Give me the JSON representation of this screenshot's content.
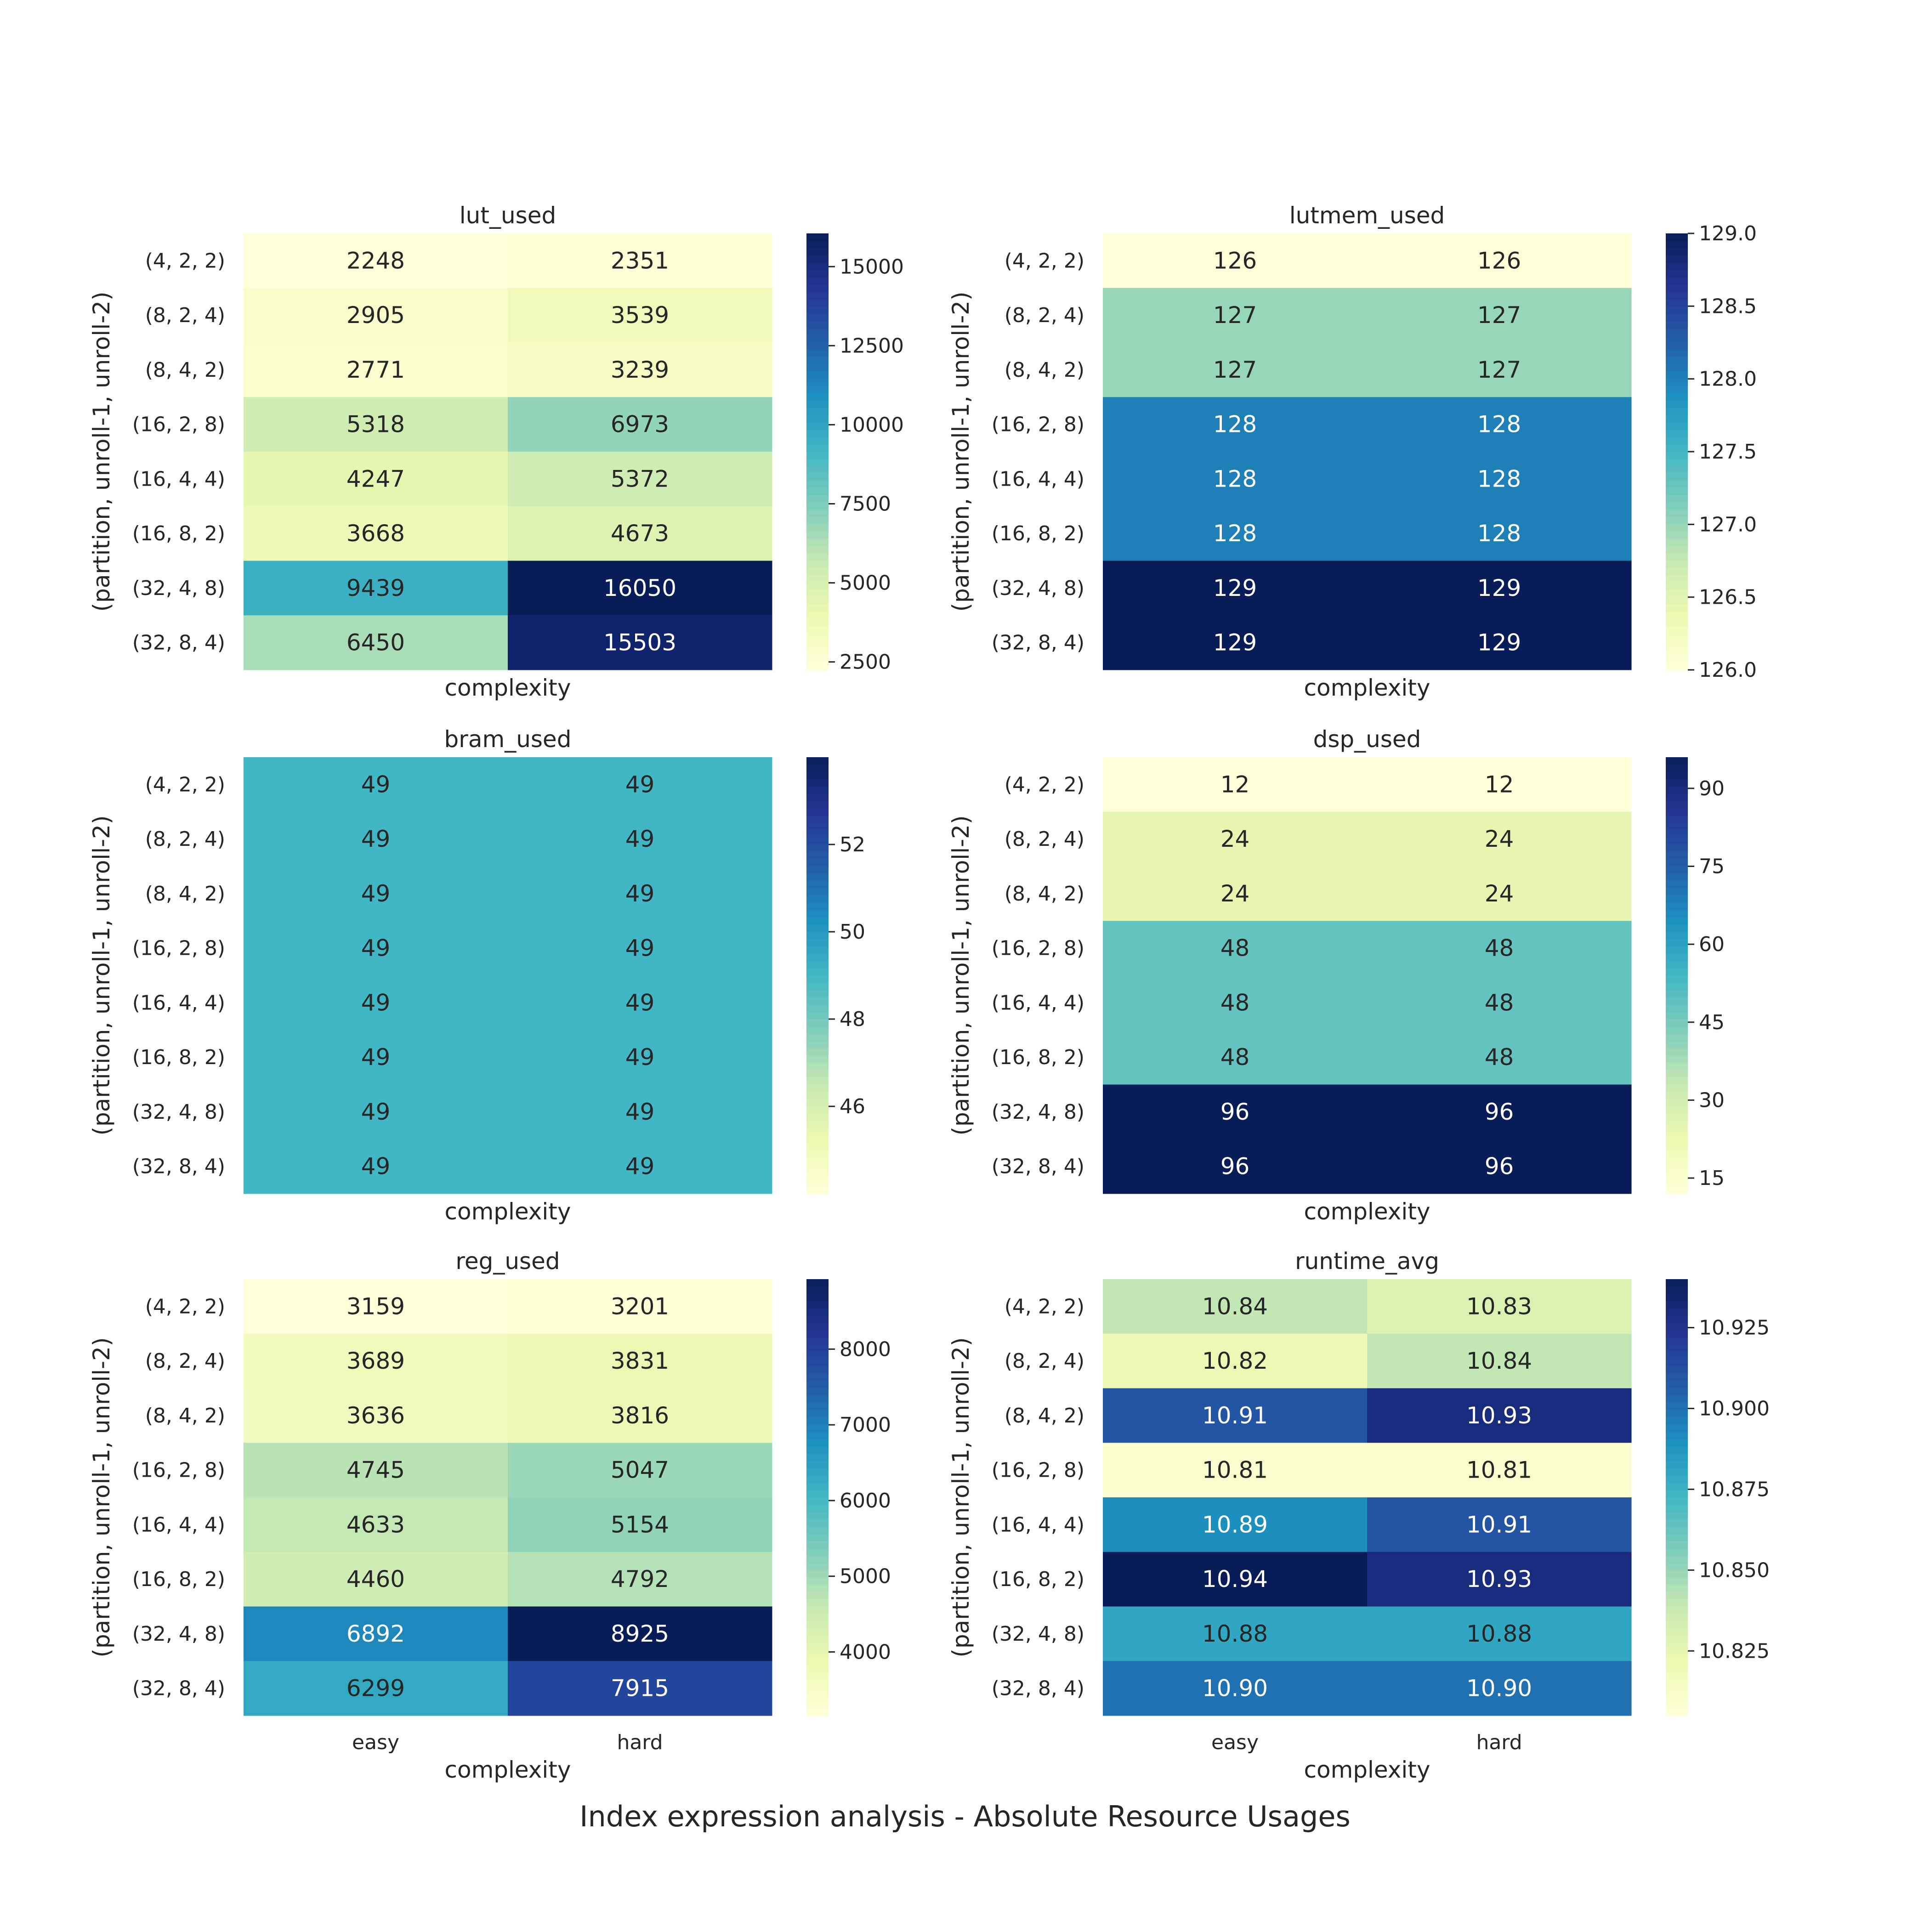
{
  "figure": {
    "suptitle": "Index expression analysis - Absolute Resource Usages"
  },
  "colormap": {
    "name": "YlGnBu",
    "stops": [
      "#ffffd9",
      "#edf8b1",
      "#c7e9b4",
      "#7fcdbb",
      "#41b6c4",
      "#1d91c0",
      "#225ea8",
      "#253494",
      "#081d58"
    ]
  },
  "chart_data": [
    {
      "type": "heatmap",
      "title": "lut_used",
      "xlabel": "complexity",
      "ylabel": "(partition, unroll-1, unroll-2)",
      "columns": [
        "easy",
        "hard"
      ],
      "rows": [
        "(4, 2, 2)",
        "(8, 2, 4)",
        "(8, 4, 2)",
        "(16, 2, 8)",
        "(16, 4, 4)",
        "(16, 8, 2)",
        "(32, 4, 8)",
        "(32, 8, 4)"
      ],
      "values": [
        [
          2248,
          2351
        ],
        [
          2905,
          3539
        ],
        [
          2771,
          3239
        ],
        [
          5318,
          6973
        ],
        [
          4247,
          5372
        ],
        [
          3668,
          4673
        ],
        [
          9439,
          16050
        ],
        [
          6450,
          15503
        ]
      ],
      "labels": [
        [
          "2248",
          "2351"
        ],
        [
          "2905",
          "3539"
        ],
        [
          "2771",
          "3239"
        ],
        [
          "5318",
          "6973"
        ],
        [
          "4247",
          "5372"
        ],
        [
          "3668",
          "4673"
        ],
        [
          "9439",
          "16050"
        ],
        [
          "6450",
          "15503"
        ]
      ],
      "vmin": 2248,
      "vmax": 16050,
      "colorbar_ticks": [
        2500,
        5000,
        7500,
        10000,
        12500,
        15000
      ],
      "colorbar_tick_labels": [
        "2500",
        "5000",
        "7500",
        "10000",
        "12500",
        "15000"
      ],
      "show_xticklabels": false
    },
    {
      "type": "heatmap",
      "title": "lutmem_used",
      "xlabel": "complexity",
      "ylabel": "(partition, unroll-1, unroll-2)",
      "columns": [
        "easy",
        "hard"
      ],
      "rows": [
        "(4, 2, 2)",
        "(8, 2, 4)",
        "(8, 4, 2)",
        "(16, 2, 8)",
        "(16, 4, 4)",
        "(16, 8, 2)",
        "(32, 4, 8)",
        "(32, 8, 4)"
      ],
      "values": [
        [
          126,
          126
        ],
        [
          127,
          127
        ],
        [
          127,
          127
        ],
        [
          128,
          128
        ],
        [
          128,
          128
        ],
        [
          128,
          128
        ],
        [
          129,
          129
        ],
        [
          129,
          129
        ]
      ],
      "labels": [
        [
          "126",
          "126"
        ],
        [
          "127",
          "127"
        ],
        [
          "127",
          "127"
        ],
        [
          "128",
          "128"
        ],
        [
          "128",
          "128"
        ],
        [
          "128",
          "128"
        ],
        [
          "129",
          "129"
        ],
        [
          "129",
          "129"
        ]
      ],
      "vmin": 126,
      "vmax": 129,
      "colorbar_ticks": [
        126.0,
        126.5,
        127.0,
        127.5,
        128.0,
        128.5,
        129.0
      ],
      "colorbar_tick_labels": [
        "126.0",
        "126.5",
        "127.0",
        "127.5",
        "128.0",
        "128.5",
        "129.0"
      ],
      "show_xticklabels": false
    },
    {
      "type": "heatmap",
      "title": "bram_used",
      "xlabel": "complexity",
      "ylabel": "(partition, unroll-1, unroll-2)",
      "columns": [
        "easy",
        "hard"
      ],
      "rows": [
        "(4, 2, 2)",
        "(8, 2, 4)",
        "(8, 4, 2)",
        "(16, 2, 8)",
        "(16, 4, 4)",
        "(16, 8, 2)",
        "(32, 4, 8)",
        "(32, 8, 4)"
      ],
      "values": [
        [
          49,
          49
        ],
        [
          49,
          49
        ],
        [
          49,
          49
        ],
        [
          49,
          49
        ],
        [
          49,
          49
        ],
        [
          49,
          49
        ],
        [
          49,
          49
        ],
        [
          49,
          49
        ]
      ],
      "labels": [
        [
          "49",
          "49"
        ],
        [
          "49",
          "49"
        ],
        [
          "49",
          "49"
        ],
        [
          "49",
          "49"
        ],
        [
          "49",
          "49"
        ],
        [
          "49",
          "49"
        ],
        [
          "49",
          "49"
        ],
        [
          "49",
          "49"
        ]
      ],
      "vmin": 44,
      "vmax": 54,
      "colorbar_ticks": [
        46,
        48,
        50,
        52
      ],
      "colorbar_tick_labels": [
        "46",
        "48",
        "50",
        "52"
      ],
      "show_xticklabels": false
    },
    {
      "type": "heatmap",
      "title": "dsp_used",
      "xlabel": "complexity",
      "ylabel": "(partition, unroll-1, unroll-2)",
      "columns": [
        "easy",
        "hard"
      ],
      "rows": [
        "(4, 2, 2)",
        "(8, 2, 4)",
        "(8, 4, 2)",
        "(16, 2, 8)",
        "(16, 4, 4)",
        "(16, 8, 2)",
        "(32, 4, 8)",
        "(32, 8, 4)"
      ],
      "values": [
        [
          12,
          12
        ],
        [
          24,
          24
        ],
        [
          24,
          24
        ],
        [
          48,
          48
        ],
        [
          48,
          48
        ],
        [
          48,
          48
        ],
        [
          96,
          96
        ],
        [
          96,
          96
        ]
      ],
      "labels": [
        [
          "12",
          "12"
        ],
        [
          "24",
          "24"
        ],
        [
          "24",
          "24"
        ],
        [
          "48",
          "48"
        ],
        [
          "48",
          "48"
        ],
        [
          "48",
          "48"
        ],
        [
          "96",
          "96"
        ],
        [
          "96",
          "96"
        ]
      ],
      "vmin": 12,
      "vmax": 96,
      "colorbar_ticks": [
        15,
        30,
        45,
        60,
        75,
        90
      ],
      "colorbar_tick_labels": [
        "15",
        "30",
        "45",
        "60",
        "75",
        "90"
      ],
      "show_xticklabels": false
    },
    {
      "type": "heatmap",
      "title": "reg_used",
      "xlabel": "complexity",
      "ylabel": "(partition, unroll-1, unroll-2)",
      "columns": [
        "easy",
        "hard"
      ],
      "rows": [
        "(4, 2, 2)",
        "(8, 2, 4)",
        "(8, 4, 2)",
        "(16, 2, 8)",
        "(16, 4, 4)",
        "(16, 8, 2)",
        "(32, 4, 8)",
        "(32, 8, 4)"
      ],
      "values": [
        [
          3159,
          3201
        ],
        [
          3689,
          3831
        ],
        [
          3636,
          3816
        ],
        [
          4745,
          5047
        ],
        [
          4633,
          5154
        ],
        [
          4460,
          4792
        ],
        [
          6892,
          8925
        ],
        [
          6299,
          7915
        ]
      ],
      "labels": [
        [
          "3159",
          "3201"
        ],
        [
          "3689",
          "3831"
        ],
        [
          "3636",
          "3816"
        ],
        [
          "4745",
          "5047"
        ],
        [
          "4633",
          "5154"
        ],
        [
          "4460",
          "4792"
        ],
        [
          "6892",
          "8925"
        ],
        [
          "6299",
          "7915"
        ]
      ],
      "vmin": 3159,
      "vmax": 8925,
      "colorbar_ticks": [
        4000,
        5000,
        6000,
        7000,
        8000
      ],
      "colorbar_tick_labels": [
        "4000",
        "5000",
        "6000",
        "7000",
        "8000"
      ],
      "show_xticklabels": true
    },
    {
      "type": "heatmap",
      "title": "runtime_avg",
      "xlabel": "complexity",
      "ylabel": "(partition, unroll-1, unroll-2)",
      "columns": [
        "easy",
        "hard"
      ],
      "rows": [
        "(4, 2, 2)",
        "(8, 2, 4)",
        "(8, 4, 2)",
        "(16, 2, 8)",
        "(16, 4, 4)",
        "(16, 8, 2)",
        "(32, 4, 8)",
        "(32, 8, 4)"
      ],
      "values": [
        [
          10.84,
          10.83
        ],
        [
          10.82,
          10.84
        ],
        [
          10.91,
          10.93
        ],
        [
          10.81,
          10.81
        ],
        [
          10.89,
          10.91
        ],
        [
          10.94,
          10.93
        ],
        [
          10.88,
          10.88
        ],
        [
          10.9,
          10.9
        ]
      ],
      "labels": [
        [
          "10.84",
          "10.83"
        ],
        [
          "10.82",
          "10.84"
        ],
        [
          "10.91",
          "10.93"
        ],
        [
          "10.81",
          "10.81"
        ],
        [
          "10.89",
          "10.91"
        ],
        [
          "10.94",
          "10.93"
        ],
        [
          "10.88",
          "10.88"
        ],
        [
          "10.90",
          "10.90"
        ]
      ],
      "vmin": 10.805,
      "vmax": 10.94,
      "colorbar_ticks": [
        10.825,
        10.85,
        10.875,
        10.9,
        10.925
      ],
      "colorbar_tick_labels": [
        "10.825",
        "10.850",
        "10.875",
        "10.900",
        "10.925"
      ],
      "show_xticklabels": true
    }
  ]
}
